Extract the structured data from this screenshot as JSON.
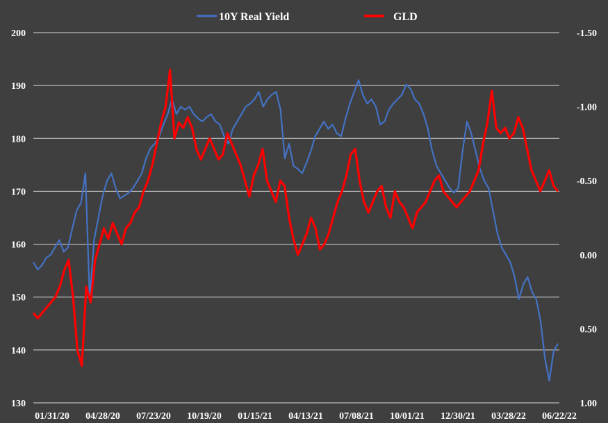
{
  "chart_data": {
    "type": "line",
    "title": "",
    "legend": "top-center",
    "grid": true,
    "series": [
      {
        "name": "10Y Real Yield",
        "axis": "right",
        "inverted": true,
        "color": "#4472c4",
        "values": [
          0.05,
          0.1,
          0.07,
          0.02,
          0.0,
          -0.05,
          -0.1,
          -0.02,
          -0.05,
          -0.18,
          -0.3,
          -0.35,
          -0.55,
          0.3,
          -0.1,
          -0.25,
          -0.4,
          -0.5,
          -0.55,
          -0.45,
          -0.38,
          -0.4,
          -0.42,
          -0.45,
          -0.5,
          -0.55,
          -0.65,
          -0.72,
          -0.75,
          -0.8,
          -0.88,
          -0.95,
          -1.05,
          -0.95,
          -1.0,
          -0.98,
          -1.0,
          -0.95,
          -0.92,
          -0.9,
          -0.93,
          -0.95,
          -0.9,
          -0.88,
          -0.8,
          -0.75,
          -0.85,
          -0.9,
          -0.95,
          -1.0,
          -1.02,
          -1.05,
          -1.1,
          -1.0,
          -1.05,
          -1.08,
          -1.1,
          -0.98,
          -0.65,
          -0.75,
          -0.6,
          -0.58,
          -0.55,
          -0.62,
          -0.7,
          -0.8,
          -0.85,
          -0.9,
          -0.85,
          -0.88,
          -0.82,
          -0.8,
          -0.92,
          -1.02,
          -1.1,
          -1.18,
          -1.08,
          -1.02,
          -1.05,
          -1.0,
          -0.88,
          -0.9,
          -0.98,
          -1.02,
          -1.05,
          -1.08,
          -1.15,
          -1.12,
          -1.05,
          -1.02,
          -0.95,
          -0.85,
          -0.7,
          -0.6,
          -0.55,
          -0.5,
          -0.45,
          -0.42,
          -0.45,
          -0.7,
          -0.9,
          -0.82,
          -0.7,
          -0.58,
          -0.5,
          -0.45,
          -0.3,
          -0.15,
          -0.05,
          0.0,
          0.05,
          0.15,
          0.3,
          0.2,
          0.15,
          0.25,
          0.3,
          0.45,
          0.7,
          0.85,
          0.65,
          0.6
        ]
      },
      {
        "name": "GLD",
        "axis": "left",
        "color": "#ff0000",
        "values": [
          147,
          146,
          147,
          148,
          149,
          150,
          152,
          155,
          157,
          150,
          140,
          137,
          152,
          149,
          157,
          160,
          163,
          161,
          164,
          162,
          160,
          163,
          164,
          166,
          167,
          170,
          172,
          175,
          179,
          183,
          186,
          193,
          180,
          183,
          182,
          184,
          182,
          178,
          176,
          178,
          180,
          178,
          176,
          177,
          181,
          179,
          177,
          175,
          172,
          169,
          173,
          175,
          178,
          172,
          170,
          168,
          172,
          171,
          165,
          161,
          158,
          160,
          162,
          165,
          163,
          159,
          160,
          162,
          165,
          168,
          170,
          173,
          177,
          178,
          172,
          168,
          166,
          168,
          170,
          171,
          167,
          165,
          170,
          168,
          167,
          165,
          163,
          166,
          167,
          168,
          170,
          172,
          173,
          170,
          169,
          168,
          167,
          168,
          169,
          170,
          172,
          174,
          179,
          183,
          189,
          182,
          181,
          182,
          180,
          181,
          184,
          182,
          178,
          174,
          172,
          170,
          172,
          174,
          171,
          170
        ]
      }
    ],
    "axes": {
      "left": {
        "ylim": [
          130,
          200
        ],
        "ticks": [
          "200",
          "190",
          "180",
          "170",
          "160",
          "150",
          "140",
          "130"
        ]
      },
      "right": {
        "ylim": [
          1.0,
          -1.5
        ],
        "ticks": [
          "-1.50",
          "-1.00",
          "-0.50",
          "0.00",
          "0.50",
          "1.00"
        ]
      },
      "x": {
        "xlabel": "",
        "ticks": [
          "01/31/20",
          "04/28/20",
          "07/23/20",
          "10/19/20",
          "01/15/21",
          "04/13/21",
          "07/08/21",
          "10/01/21",
          "12/30/21",
          "03/28/22",
          "06/22/22"
        ]
      }
    }
  }
}
